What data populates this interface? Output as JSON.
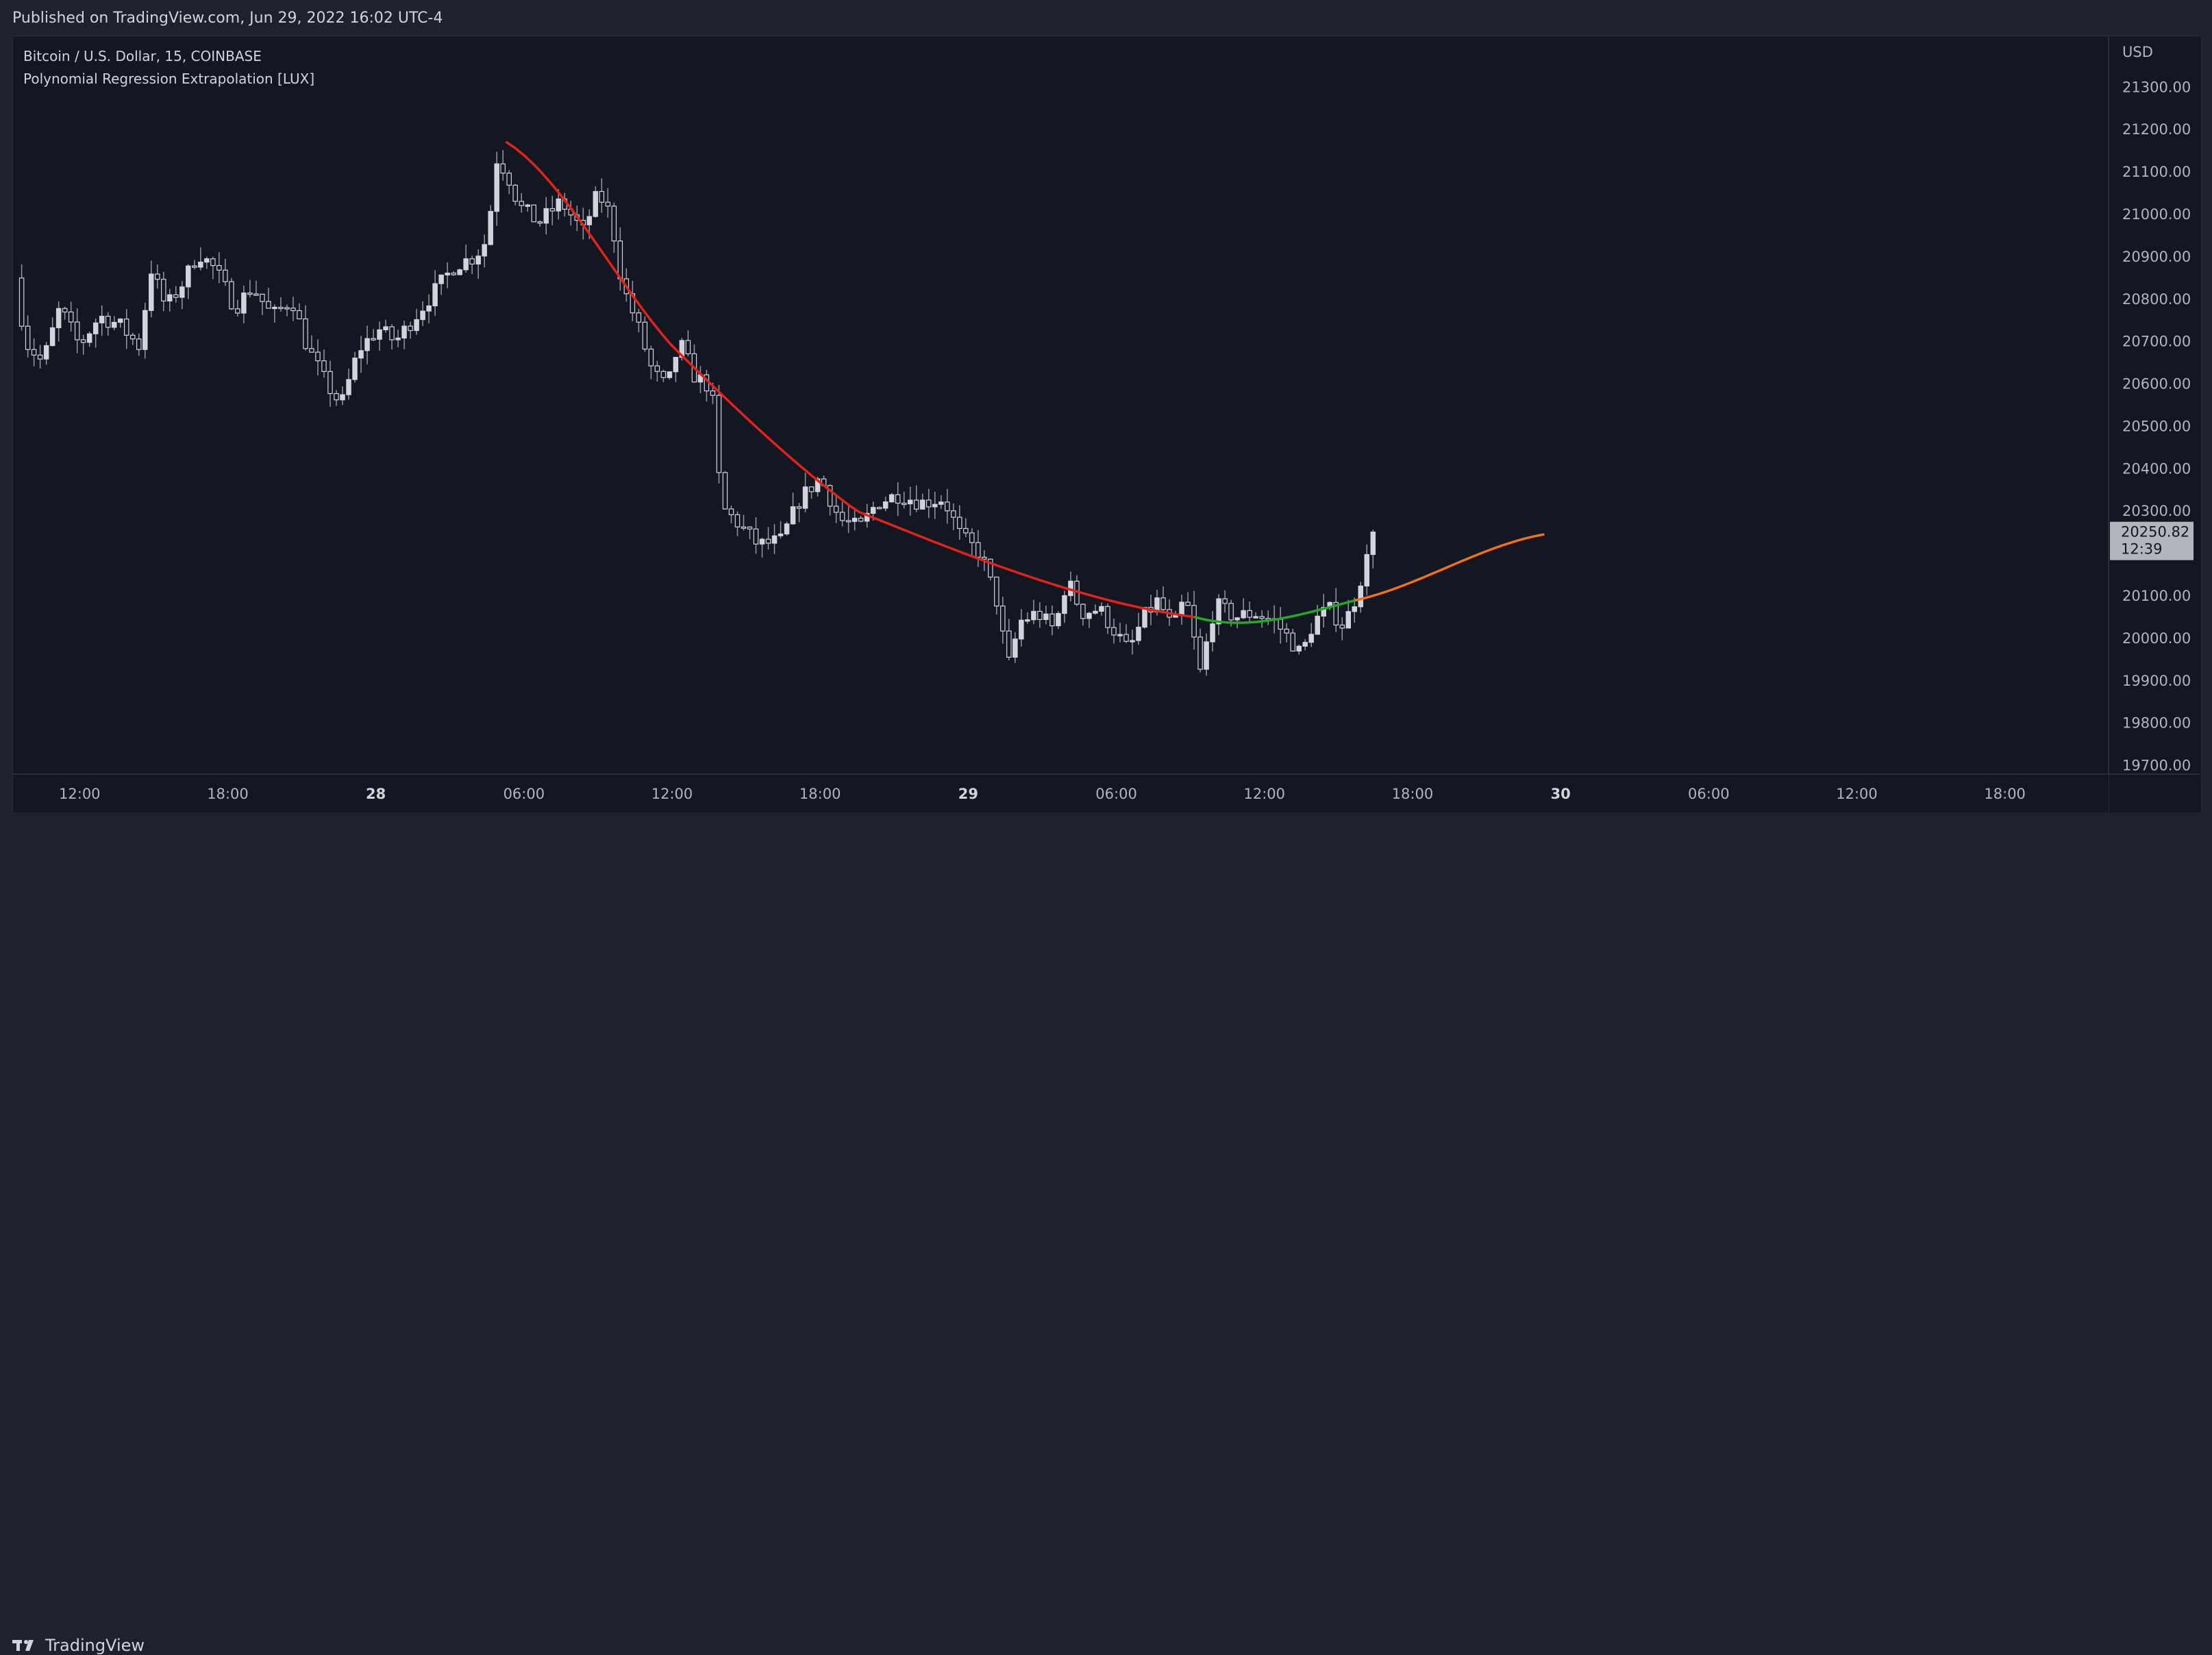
{
  "header": {
    "published": "Published on TradingView.com, Jun 29, 2022 16:02 UTC-4"
  },
  "legend": {
    "symbol": "Bitcoin / U.S. Dollar, 15, COINBASE",
    "indicator": "Polynomial Regression Extrapolation [LUX]"
  },
  "footer": {
    "brand": "TradingView"
  },
  "colors": {
    "background": "#131722",
    "frame": "#1e222d",
    "candle_up": "#d1d4dc",
    "candle_down": "#131722",
    "wick": "#9598a1",
    "regression_past": "#e5221a",
    "regression_fit": "#22ab22",
    "regression_extrapolation": "#f5700f"
  },
  "chart_data": {
    "type": "candlestick",
    "y_axis": {
      "currency": "USD",
      "ticks": [
        "21300.00",
        "21200.00",
        "21100.00",
        "21000.00",
        "20900.00",
        "20800.00",
        "20700.00",
        "20600.00",
        "20500.00",
        "20400.00",
        "20300.00",
        "20100.00",
        "20000.00",
        "19900.00",
        "19800.00",
        "19700.00"
      ],
      "range": [
        19680,
        21420
      ]
    },
    "x_axis": {
      "labels": [
        {
          "text": "12:00",
          "hour": 12,
          "bold": false
        },
        {
          "text": "18:00",
          "hour": 18,
          "bold": false
        },
        {
          "text": "28",
          "hour": 24,
          "bold": true
        },
        {
          "text": "06:00",
          "hour": 30,
          "bold": false
        },
        {
          "text": "12:00",
          "hour": 36,
          "bold": false
        },
        {
          "text": "18:00",
          "hour": 42,
          "bold": false
        },
        {
          "text": "29",
          "hour": 48,
          "bold": true
        },
        {
          "text": "06:00",
          "hour": 54,
          "bold": false
        },
        {
          "text": "12:00",
          "hour": 60,
          "bold": false
        },
        {
          "text": "18:00",
          "hour": 66,
          "bold": false
        },
        {
          "text": "30",
          "hour": 72,
          "bold": true
        },
        {
          "text": "06:00",
          "hour": 78,
          "bold": false
        },
        {
          "text": "12:00",
          "hour": 84,
          "bold": false
        },
        {
          "text": "18:00",
          "hour": 90,
          "bold": false
        }
      ],
      "range_hours": [
        9.3,
        94.2
      ]
    },
    "last_price": {
      "value": "20250.82",
      "countdown": "12:39",
      "price": 20250.82
    },
    "candle_interval_hours": 0.25,
    "close_path": [
      {
        "t": 9.4,
        "p": 20850
      },
      {
        "t": 9.8,
        "p": 20700
      },
      {
        "t": 10.5,
        "p": 20650
      },
      {
        "t": 11.2,
        "p": 20780
      },
      {
        "t": 12,
        "p": 20690
      },
      {
        "t": 12.8,
        "p": 20760
      },
      {
        "t": 13.6,
        "p": 20740
      },
      {
        "t": 14.4,
        "p": 20690
      },
      {
        "t": 14.9,
        "p": 20870
      },
      {
        "t": 15.5,
        "p": 20780
      },
      {
        "t": 16.2,
        "p": 20840
      },
      {
        "t": 16.8,
        "p": 20910
      },
      {
        "t": 17.5,
        "p": 20870
      },
      {
        "t": 18.3,
        "p": 20780
      },
      {
        "t": 19,
        "p": 20830
      },
      {
        "t": 19.8,
        "p": 20760
      },
      {
        "t": 20.6,
        "p": 20800
      },
      {
        "t": 21.2,
        "p": 20690
      },
      {
        "t": 22,
        "p": 20600
      },
      {
        "t": 22.6,
        "p": 20550
      },
      {
        "t": 23.3,
        "p": 20680
      },
      {
        "t": 24.1,
        "p": 20730
      },
      {
        "t": 24.8,
        "p": 20700
      },
      {
        "t": 25.6,
        "p": 20760
      },
      {
        "t": 26.4,
        "p": 20820
      },
      {
        "t": 27.2,
        "p": 20880
      },
      {
        "t": 28,
        "p": 20900
      },
      {
        "t": 28.5,
        "p": 20940
      },
      {
        "t": 28.9,
        "p": 21130
      },
      {
        "t": 29.3,
        "p": 21100
      },
      {
        "t": 29.8,
        "p": 21020
      },
      {
        "t": 30.6,
        "p": 20980
      },
      {
        "t": 31.5,
        "p": 21030
      },
      {
        "t": 32.4,
        "p": 20960
      },
      {
        "t": 33,
        "p": 21050
      },
      {
        "t": 33.5,
        "p": 21000
      },
      {
        "t": 34,
        "p": 20830
      },
      {
        "t": 34.6,
        "p": 20740
      },
      {
        "t": 35.2,
        "p": 20630
      },
      {
        "t": 35.8,
        "p": 20590
      },
      {
        "t": 36.3,
        "p": 20700
      },
      {
        "t": 36.9,
        "p": 20620
      },
      {
        "t": 37.6,
        "p": 20590
      },
      {
        "t": 38,
        "p": 20310
      },
      {
        "t": 38.7,
        "p": 20270
      },
      {
        "t": 39.5,
        "p": 20220
      },
      {
        "t": 40.4,
        "p": 20230
      },
      {
        "t": 41.2,
        "p": 20330
      },
      {
        "t": 42,
        "p": 20380
      },
      {
        "t": 42.8,
        "p": 20280
      },
      {
        "t": 43.6,
        "p": 20260
      },
      {
        "t": 44.3,
        "p": 20320
      },
      {
        "t": 45.2,
        "p": 20340
      },
      {
        "t": 46.1,
        "p": 20320
      },
      {
        "t": 47,
        "p": 20330
      },
      {
        "t": 47.7,
        "p": 20240
      },
      {
        "t": 48.5,
        "p": 20200
      },
      {
        "t": 49.2,
        "p": 20080
      },
      {
        "t": 49.6,
        "p": 19930
      },
      {
        "t": 50.1,
        "p": 20040
      },
      {
        "t": 50.8,
        "p": 20060
      },
      {
        "t": 51.5,
        "p": 20020
      },
      {
        "t": 52,
        "p": 20140
      },
      {
        "t": 52.6,
        "p": 20060
      },
      {
        "t": 53.3,
        "p": 20070
      },
      {
        "t": 53.9,
        "p": 20020
      },
      {
        "t": 54.5,
        "p": 19970
      },
      {
        "t": 55.1,
        "p": 20050
      },
      {
        "t": 55.7,
        "p": 20090
      },
      {
        "t": 56.3,
        "p": 20020
      },
      {
        "t": 56.8,
        "p": 20100
      },
      {
        "t": 57.4,
        "p": 19920
      },
      {
        "t": 58,
        "p": 20080
      },
      {
        "t": 58.8,
        "p": 20050
      },
      {
        "t": 59.6,
        "p": 20060
      },
      {
        "t": 60.4,
        "p": 20040
      },
      {
        "t": 61,
        "p": 20000
      },
      {
        "t": 61.5,
        "p": 19960
      },
      {
        "t": 62,
        "p": 20040
      },
      {
        "t": 62.6,
        "p": 20070
      },
      {
        "t": 63.2,
        "p": 20030
      },
      {
        "t": 63.6,
        "p": 20080
      },
      {
        "t": 64,
        "p": 20160
      },
      {
        "t": 64.5,
        "p": 20250
      }
    ],
    "regression": {
      "fit_start_hour": 29.3,
      "fit_split_hour": 57.2,
      "extrapolation_split_hour": 63.7,
      "end_hour": 71.3,
      "points": [
        {
          "t": 29.3,
          "p": 21170
        },
        {
          "t": 36,
          "p": 20690
        },
        {
          "t": 43.5,
          "p": 20300
        },
        {
          "t": 57.2,
          "p": 20050
        },
        {
          "t": 63.7,
          "p": 20090
        },
        {
          "t": 71.3,
          "p": 20245
        }
      ]
    }
  }
}
